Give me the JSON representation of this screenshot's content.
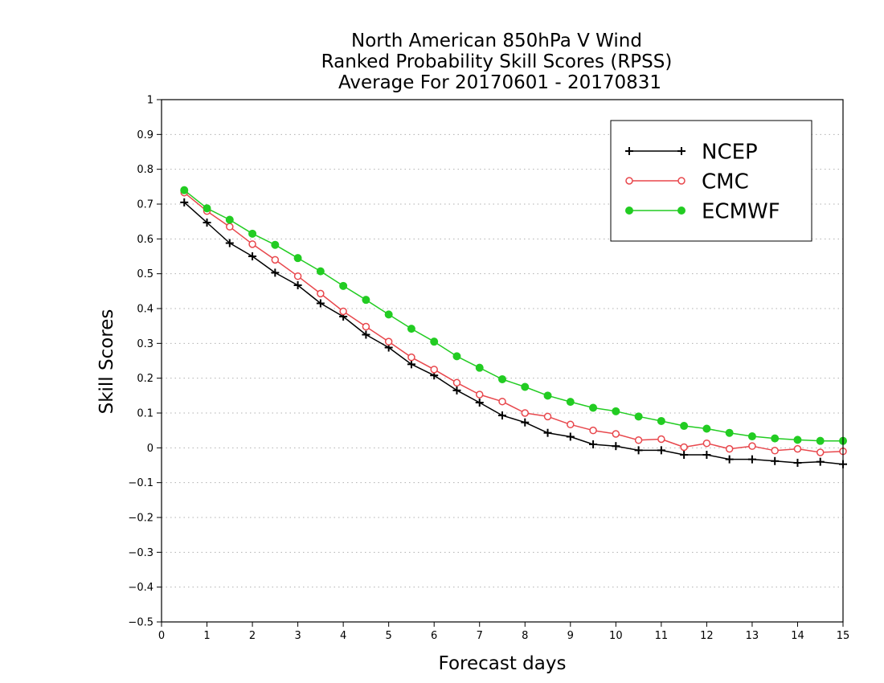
{
  "chart_data": {
    "type": "line",
    "title_lines": [
      "North American 850hPa V Wind",
      "Ranked Probability Skill Scores (RPSS)",
      "Average For 20170601 - 20170831"
    ],
    "xlabel": "Forecast days",
    "ylabel": "Skill Scores",
    "xlim": [
      0,
      15
    ],
    "ylim": [
      -0.5,
      1
    ],
    "xticks": [
      0,
      1,
      2,
      3,
      4,
      5,
      6,
      7,
      8,
      9,
      10,
      11,
      12,
      13,
      14,
      15
    ],
    "xtick_labels": [
      "0",
      "1",
      "2",
      "3",
      "4",
      "5",
      "6",
      "7",
      "8",
      "9",
      "10",
      "11",
      "12",
      "13",
      "14",
      "15"
    ],
    "yticks": [
      -0.5,
      -0.4,
      -0.3,
      -0.2,
      -0.1,
      0,
      0.1,
      0.2,
      0.3,
      0.4,
      0.5,
      0.6,
      0.7,
      0.8,
      0.9,
      1
    ],
    "ytick_labels": [
      "−0.5",
      "−0.4",
      "−0.3",
      "−0.2",
      "−0.1",
      "0",
      "0.1",
      "0.2",
      "0.3",
      "0.4",
      "0.5",
      "0.6",
      "0.7",
      "0.8",
      "0.9",
      "1"
    ],
    "grid": true,
    "legend_position": "top-right",
    "x": [
      0.5,
      1,
      1.5,
      2,
      2.5,
      3,
      3.5,
      4,
      4.5,
      5,
      5.5,
      6,
      6.5,
      7,
      7.5,
      8,
      8.5,
      9,
      9.5,
      10,
      10.5,
      11,
      11.5,
      12,
      12.5,
      13,
      13.5,
      14,
      14.5,
      15
    ],
    "series": [
      {
        "name": "NCEP",
        "color": "#000000",
        "marker": "plus",
        "values": [
          0.705,
          0.647,
          0.588,
          0.55,
          0.503,
          0.467,
          0.415,
          0.377,
          0.325,
          0.288,
          0.24,
          0.208,
          0.165,
          0.13,
          0.093,
          0.073,
          0.043,
          0.032,
          0.01,
          0.005,
          -0.007,
          -0.007,
          -0.02,
          -0.02,
          -0.033,
          -0.033,
          -0.038,
          -0.043,
          -0.04,
          -0.047
        ]
      },
      {
        "name": "CMC",
        "color": "#e8474c",
        "marker": "open-circle",
        "values": [
          0.733,
          0.68,
          0.635,
          0.585,
          0.54,
          0.493,
          0.443,
          0.392,
          0.348,
          0.305,
          0.26,
          0.225,
          0.187,
          0.153,
          0.133,
          0.1,
          0.09,
          0.067,
          0.05,
          0.04,
          0.022,
          0.025,
          0.002,
          0.013,
          -0.003,
          0.005,
          -0.008,
          -0.003,
          -0.013,
          -0.01
        ]
      },
      {
        "name": "ECMWF",
        "color": "#22cc22",
        "marker": "filled-circle",
        "values": [
          0.74,
          0.688,
          0.655,
          0.615,
          0.583,
          0.545,
          0.507,
          0.465,
          0.425,
          0.383,
          0.342,
          0.305,
          0.263,
          0.23,
          0.197,
          0.175,
          0.15,
          0.132,
          0.115,
          0.105,
          0.09,
          0.077,
          0.063,
          0.055,
          0.043,
          0.033,
          0.027,
          0.023,
          0.02,
          0.02
        ]
      }
    ]
  }
}
